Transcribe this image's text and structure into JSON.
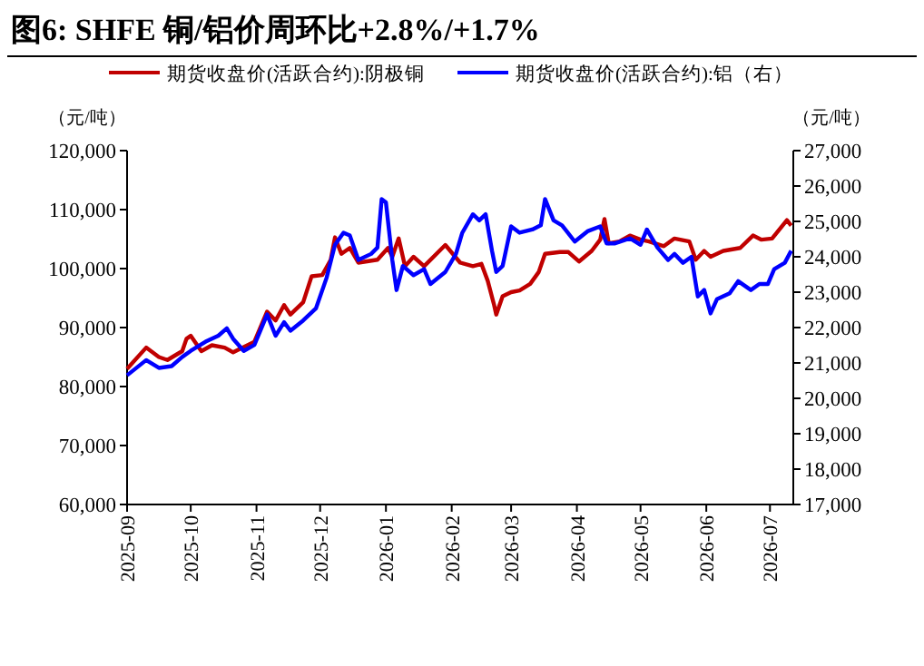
{
  "chart_data": {
    "type": "line",
    "title": "图6:  SHFE 铜/铝价周环比+2.8%/+1.7%",
    "ylabel": "（元/吨）",
    "y2label": "（元/吨）",
    "legend": "top",
    "xlim": [
      "2025-09-01",
      "2026-07-12"
    ],
    "xticks": [
      "2025-09",
      "2025-10",
      "2025-11",
      "2025-12",
      "2026-01",
      "2026-02",
      "2026-03",
      "2026-04",
      "2026-05",
      "2026-06",
      "2026-07"
    ],
    "ylim": [
      60000,
      120000
    ],
    "yticks": [
      {
        "value": 60000,
        "label": "60,000"
      },
      {
        "value": 70000,
        "label": "70,000"
      },
      {
        "value": 80000,
        "label": "80,000"
      },
      {
        "value": 90000,
        "label": "90,000"
      },
      {
        "value": 100000,
        "label": "100,000"
      },
      {
        "value": 110000,
        "label": "110,000"
      },
      {
        "value": 120000,
        "label": "120,000"
      }
    ],
    "y2lim": [
      17000,
      27000
    ],
    "y2ticks": [
      {
        "value": 17000,
        "label": "17,000"
      },
      {
        "value": 18000,
        "label": "18,000"
      },
      {
        "value": 19000,
        "label": "19,000"
      },
      {
        "value": 20000,
        "label": "20,000"
      },
      {
        "value": 21000,
        "label": "21,000"
      },
      {
        "value": 22000,
        "label": "22,000"
      },
      {
        "value": 23000,
        "label": "23,000"
      },
      {
        "value": 24000,
        "label": "24,000"
      },
      {
        "value": 25000,
        "label": "25,000"
      },
      {
        "value": 26000,
        "label": "26,000"
      },
      {
        "value": 27000,
        "label": "27,000"
      }
    ],
    "series": [
      {
        "name": "期货收盘价(活跃合约):阴极铜",
        "color": "#c00000",
        "axis": "y",
        "x": [
          "2025-09-01",
          "2025-09-10",
          "2025-09-16",
          "2025-09-20",
          "2025-09-27",
          "2025-09-29",
          "2025-10-01",
          "2025-10-06",
          "2025-10-11",
          "2025-10-17",
          "2025-10-21",
          "2025-10-31",
          "2025-11-06",
          "2025-11-10",
          "2025-11-14",
          "2025-11-17",
          "2025-11-23",
          "2025-11-27",
          "2025-12-02",
          "2025-12-06",
          "2025-12-08",
          "2025-12-11",
          "2025-12-15",
          "2025-12-19",
          "2025-12-28",
          "2026-01-02",
          "2026-01-04",
          "2026-01-07",
          "2026-01-10",
          "2026-01-14",
          "2026-01-19",
          "2026-01-29",
          "2026-02-05",
          "2026-02-11",
          "2026-02-15",
          "2026-02-18",
          "2026-02-21",
          "2026-02-22",
          "2026-02-25",
          "2026-03-01",
          "2026-03-05",
          "2026-03-10",
          "2026-03-14",
          "2026-03-17",
          "2026-03-24",
          "2026-03-28",
          "2026-04-02",
          "2026-04-08",
          "2026-04-12",
          "2026-04-14",
          "2026-04-16",
          "2026-04-21",
          "2026-04-26",
          "2026-05-01",
          "2026-05-05",
          "2026-05-12",
          "2026-05-17",
          "2026-05-24",
          "2026-05-27",
          "2026-05-31",
          "2026-06-03",
          "2026-06-09",
          "2026-06-17",
          "2026-06-23",
          "2026-06-27",
          "2026-07-02",
          "2026-07-09",
          "2026-07-11"
        ],
        "values": [
          83000,
          86600,
          85000,
          84500,
          86000,
          88100,
          88600,
          86000,
          87000,
          86600,
          85800,
          87600,
          92700,
          91200,
          93800,
          92200,
          94300,
          98700,
          98900,
          101500,
          105300,
          102500,
          103500,
          101000,
          101500,
          103500,
          102000,
          105100,
          100400,
          102000,
          100400,
          104000,
          101000,
          100400,
          100800,
          97900,
          93800,
          92200,
          95300,
          96000,
          96300,
          97400,
          99400,
          102500,
          102800,
          102800,
          101200,
          103000,
          104900,
          108400,
          104300,
          104600,
          105600,
          104900,
          104600,
          103800,
          105100,
          104600,
          101500,
          103000,
          102000,
          103000,
          103500,
          105600,
          104900,
          105100,
          108200,
          107300
        ]
      },
      {
        "name": "期货收盘价(活跃合约):铝（右）",
        "color": "#0000ff",
        "axis": "y2",
        "x": [
          "2025-09-01",
          "2025-09-10",
          "2025-09-16",
          "2025-09-22",
          "2025-09-27",
          "2025-10-01",
          "2025-10-08",
          "2025-10-14",
          "2025-10-18",
          "2025-10-21",
          "2025-10-26",
          "2025-10-31",
          "2025-11-06",
          "2025-11-10",
          "2025-11-14",
          "2025-11-17",
          "2025-11-23",
          "2025-11-29",
          "2025-12-04",
          "2025-12-08",
          "2025-12-12",
          "2025-12-15",
          "2025-12-19",
          "2025-12-25",
          "2025-12-28",
          "2025-12-30",
          "2026-01-01",
          "2026-01-04",
          "2026-01-06",
          "2026-01-09",
          "2026-01-14",
          "2026-01-19",
          "2026-01-22",
          "2026-01-29",
          "2026-02-03",
          "2026-02-06",
          "2026-02-11",
          "2026-02-14",
          "2026-02-17",
          "2026-02-20",
          "2026-02-22",
          "2026-02-25",
          "2026-03-01",
          "2026-03-05",
          "2026-03-11",
          "2026-03-15",
          "2026-03-17",
          "2026-03-21",
          "2026-03-25",
          "2026-03-31",
          "2026-04-06",
          "2026-04-12",
          "2026-04-15",
          "2026-04-19",
          "2026-04-26",
          "2026-05-01",
          "2026-05-04",
          "2026-05-09",
          "2026-05-14",
          "2026-05-17",
          "2026-05-21",
          "2026-05-25",
          "2026-05-28",
          "2026-05-31",
          "2026-06-03",
          "2026-06-06",
          "2026-06-12",
          "2026-06-16",
          "2026-06-22",
          "2026-06-26",
          "2026-06-30",
          "2026-07-03",
          "2026-07-08",
          "2026-07-11"
        ],
        "values": [
          20650,
          21080,
          20860,
          20910,
          21170,
          21340,
          21600,
          21770,
          21980,
          21680,
          21340,
          21510,
          22370,
          21770,
          22150,
          21910,
          22200,
          22540,
          23400,
          24340,
          24680,
          24600,
          23910,
          24080,
          24260,
          25630,
          25540,
          23910,
          23060,
          23740,
          23480,
          23650,
          23230,
          23570,
          24080,
          24680,
          25200,
          25030,
          25200,
          24170,
          23570,
          23740,
          24860,
          24680,
          24770,
          24890,
          25630,
          25030,
          24890,
          24430,
          24720,
          24860,
          24380,
          24380,
          24520,
          24340,
          24770,
          24260,
          23910,
          24080,
          23830,
          24000,
          22880,
          23060,
          22400,
          22800,
          22970,
          23310,
          23060,
          23230,
          23230,
          23650,
          23830,
          24170
        ]
      }
    ]
  }
}
